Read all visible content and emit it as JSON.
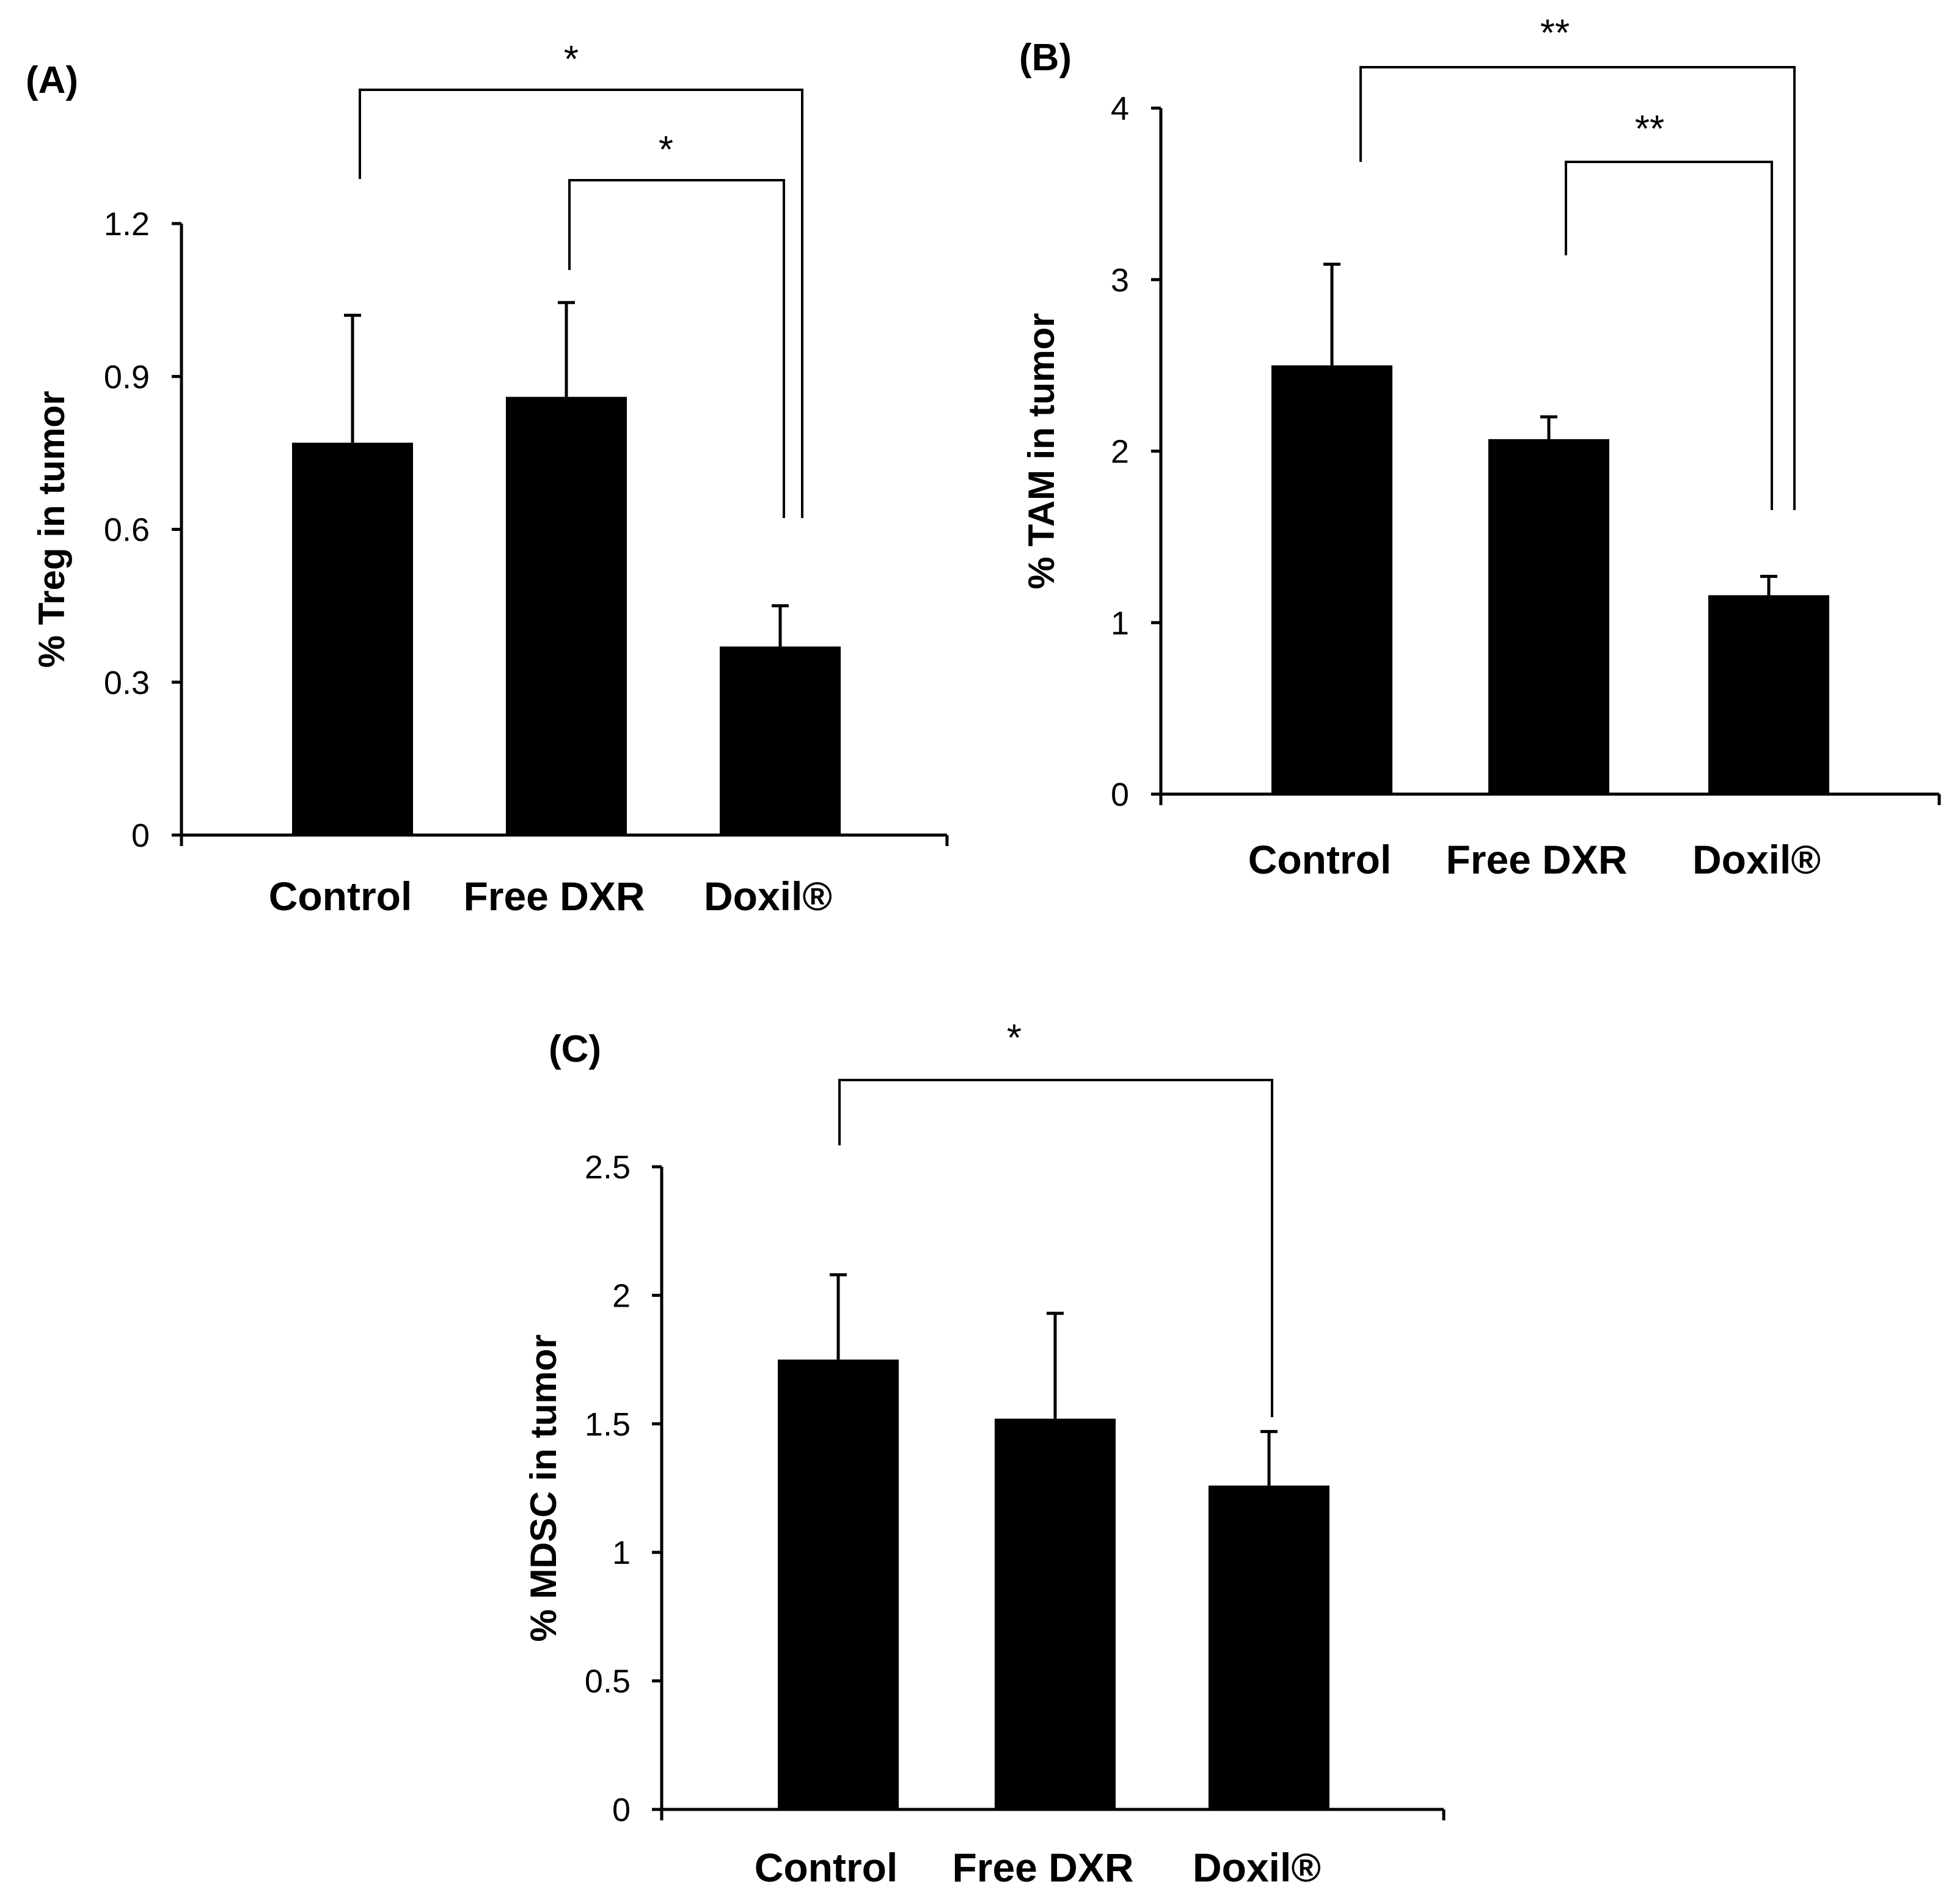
{
  "chart_data": [
    {
      "panel": "(A)",
      "type": "bar",
      "categories": [
        "Control",
        "Free DXR",
        "Doxil®"
      ],
      "values": [
        0.77,
        0.86,
        0.37
      ],
      "errors": [
        0.25,
        0.185,
        0.08
      ],
      "ylabel": "% Treg in tumor",
      "ylim": [
        0,
        1.2
      ],
      "yticks": [
        "0",
        "0.3",
        "0.6",
        "0.9",
        "1.2"
      ],
      "bar_color": "#000000",
      "significance": [
        {
          "from": "Control",
          "to": "Doxil®",
          "label": "*"
        },
        {
          "from": "Free DXR",
          "to": "Doxil®",
          "label": "*"
        }
      ]
    },
    {
      "panel": "(B)",
      "type": "bar",
      "categories": [
        "Control",
        "Free DXR",
        "Doxil®"
      ],
      "values": [
        2.5,
        2.07,
        1.16
      ],
      "errors": [
        0.59,
        0.13,
        0.11
      ],
      "ylabel": "% TAM in tumor",
      "ylim": [
        0,
        4
      ],
      "yticks": [
        "0",
        "1",
        "2",
        "3",
        "4"
      ],
      "bar_color": "#000000",
      "significance": [
        {
          "from": "Control",
          "to": "Doxil®",
          "label": "**"
        },
        {
          "from": "Free DXR",
          "to": "Doxil®",
          "label": "**"
        }
      ]
    },
    {
      "panel": "(C)",
      "type": "bar",
      "categories": [
        "Control",
        "Free DXR",
        "Doxil®"
      ],
      "values": [
        1.75,
        1.52,
        1.26
      ],
      "errors": [
        0.33,
        0.41,
        0.21
      ],
      "ylabel": "% MDSC in tumor",
      "ylim": [
        0,
        2.5
      ],
      "yticks": [
        "0",
        "0.5",
        "1",
        "1.5",
        "2",
        "2.5"
      ],
      "bar_color": "#000000",
      "significance": [
        {
          "from": "Control",
          "to": "Doxil®",
          "label": "*"
        }
      ]
    }
  ]
}
